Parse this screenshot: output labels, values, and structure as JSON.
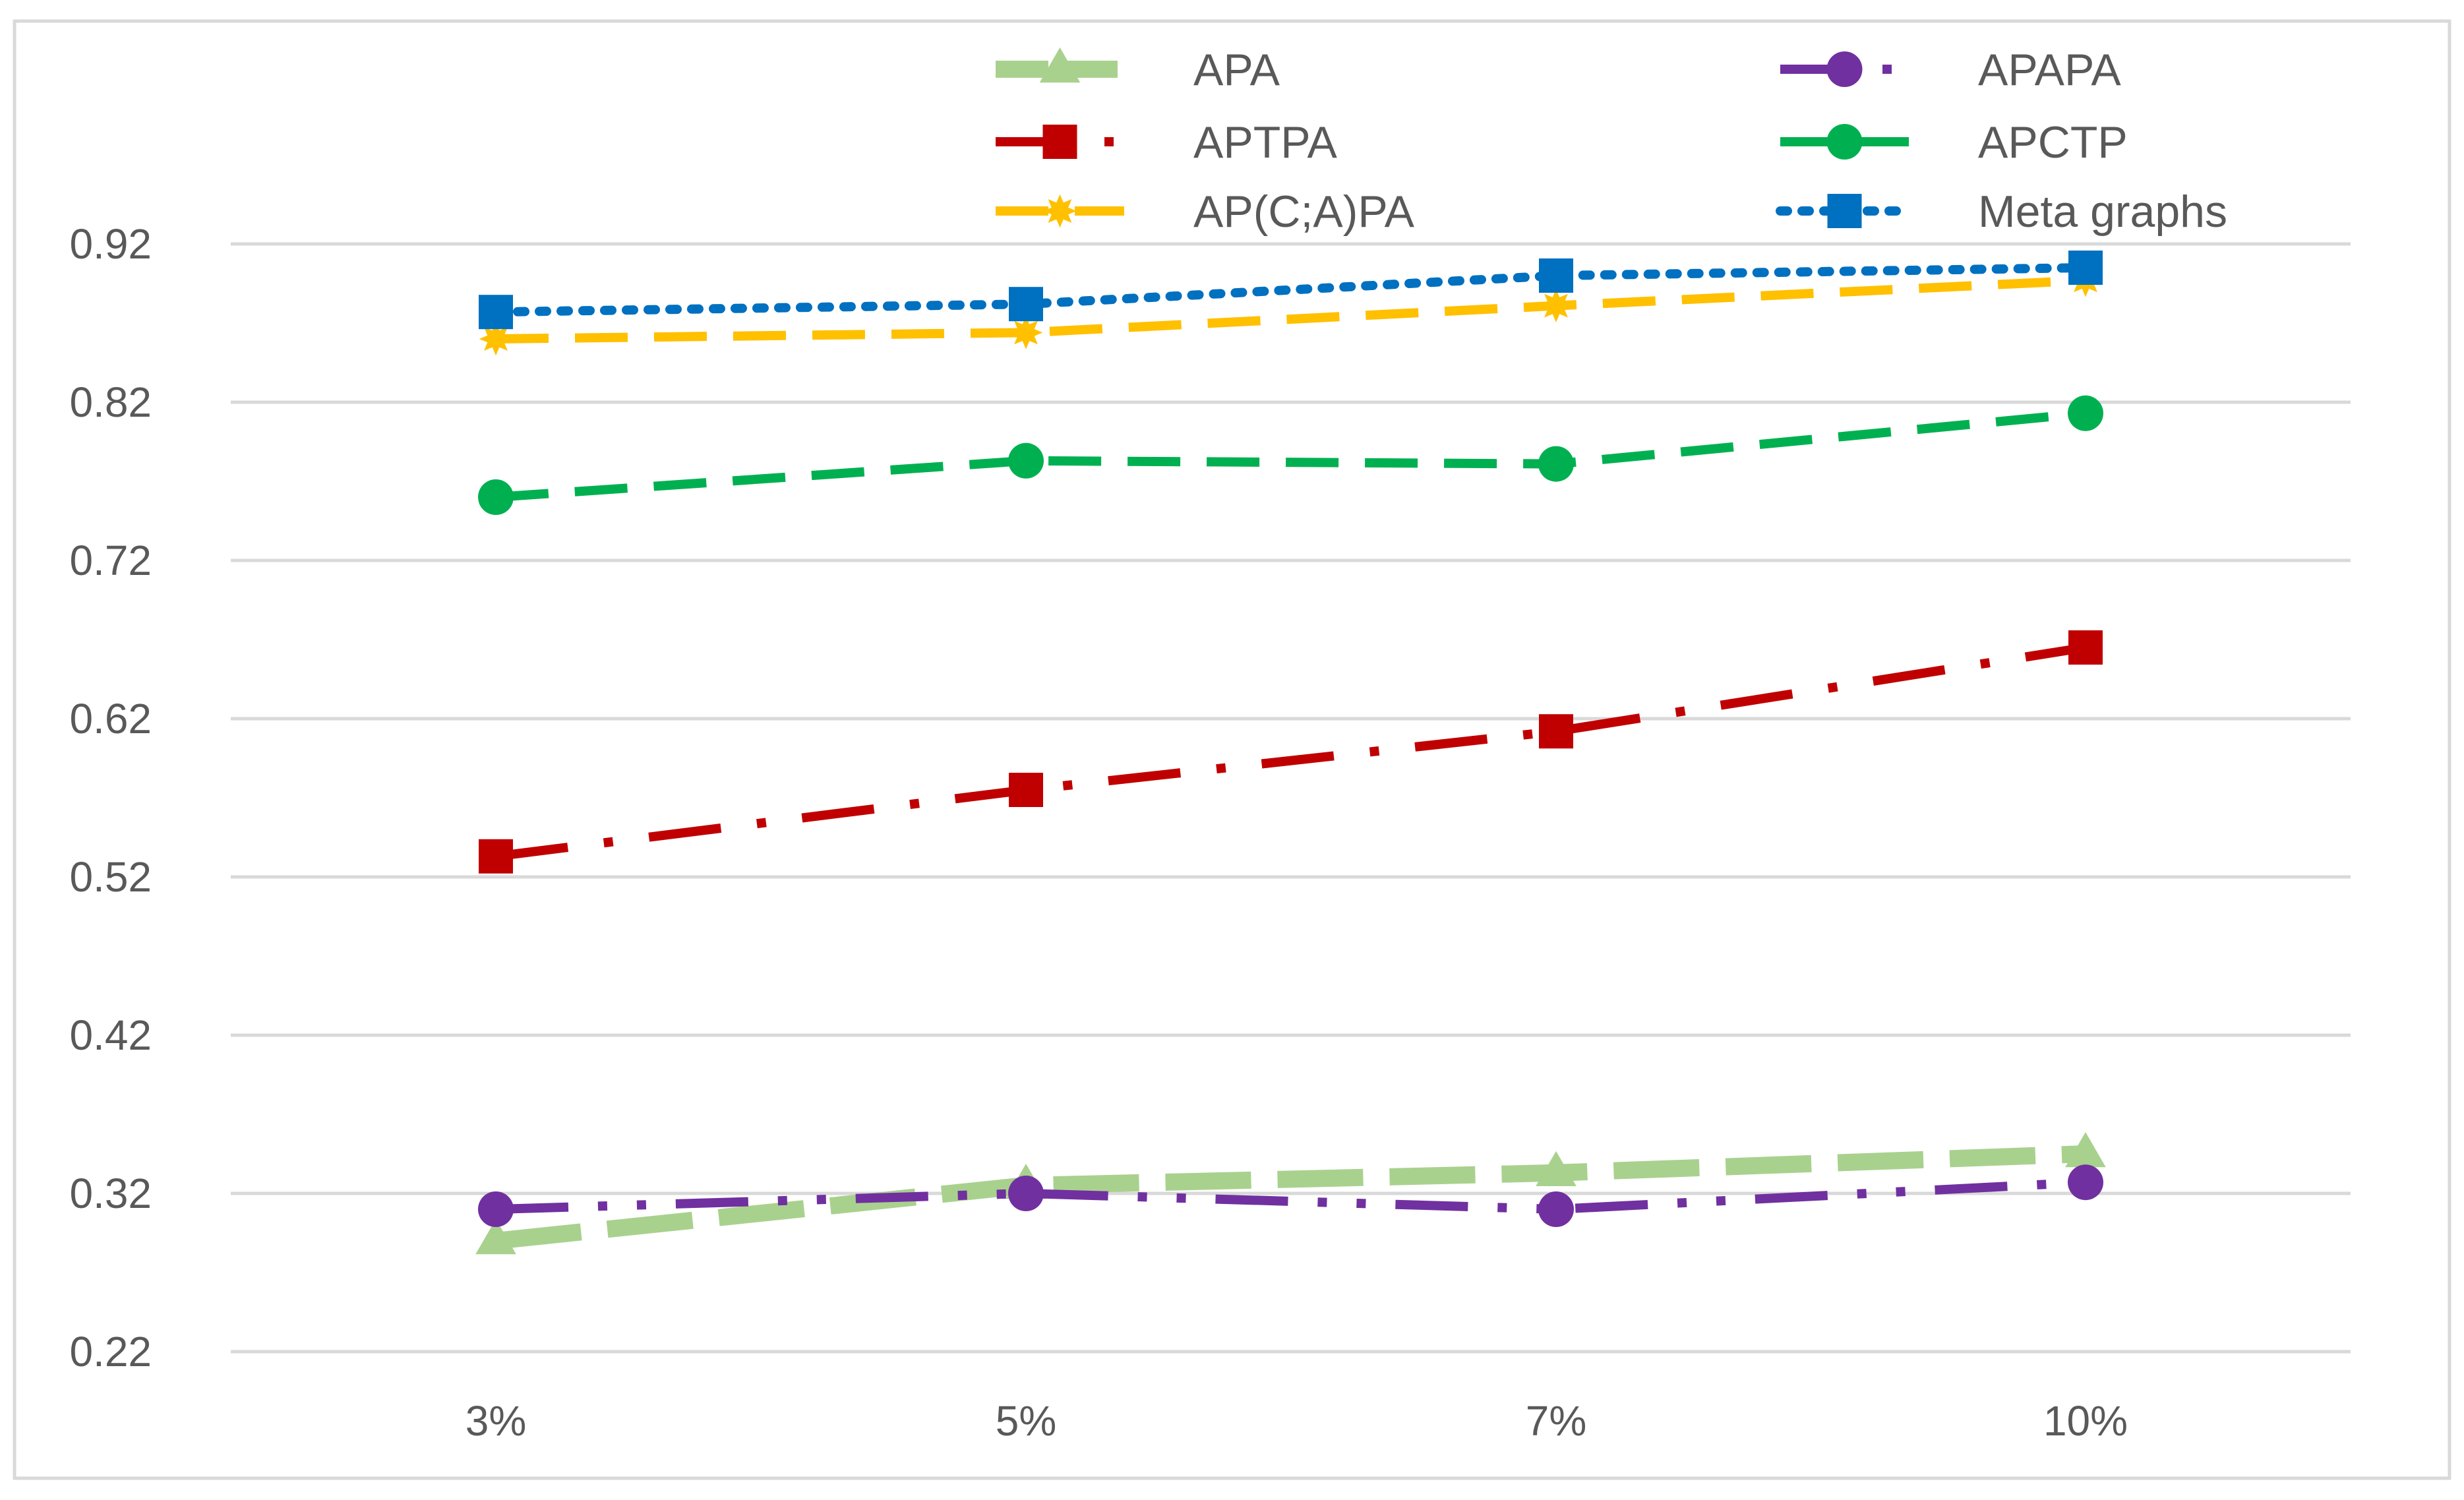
{
  "chart_data": {
    "type": "line",
    "title": "",
    "xlabel": "",
    "ylabel": "",
    "categories": [
      "3%",
      "5%",
      "7%",
      "10%"
    ],
    "ylim": [
      0.22,
      0.92
    ],
    "yticks": [
      0.22,
      0.32,
      0.42,
      0.52,
      0.62,
      0.72,
      0.82,
      0.92
    ],
    "ytick_labels": [
      "0.22",
      "0.32",
      "0.42",
      "0.52",
      "0.62",
      "0.72",
      "0.82",
      "0.92"
    ],
    "grid": true,
    "legend_position": "top",
    "series": [
      {
        "name": "APA",
        "values": [
          0.29,
          0.325,
          0.333,
          0.345
        ],
        "color": "#A9D18E",
        "marker": "triangle",
        "dash": "long-dash"
      },
      {
        "name": "APAPA",
        "values": [
          0.31,
          0.32,
          0.31,
          0.327
        ],
        "color": "#7030A0",
        "marker": "circle",
        "dash": "long-dash-dot-dot"
      },
      {
        "name": "APTPA",
        "values": [
          0.533,
          0.575,
          0.612,
          0.665
        ],
        "color": "#C00000",
        "marker": "square",
        "dash": "long-dash-dot"
      },
      {
        "name": "APCTP",
        "values": [
          0.76,
          0.783,
          0.781,
          0.813
        ],
        "color": "#00B050",
        "marker": "circle",
        "dash": "dash"
      },
      {
        "name": "AP(C;A)PA",
        "values": [
          0.86,
          0.864,
          0.881,
          0.897
        ],
        "color": "#FFC000",
        "marker": "star",
        "dash": "dash"
      },
      {
        "name": "Meta graphs",
        "values": [
          0.877,
          0.882,
          0.9,
          0.905
        ],
        "color": "#0070C0",
        "marker": "square",
        "dash": "dot"
      }
    ]
  }
}
